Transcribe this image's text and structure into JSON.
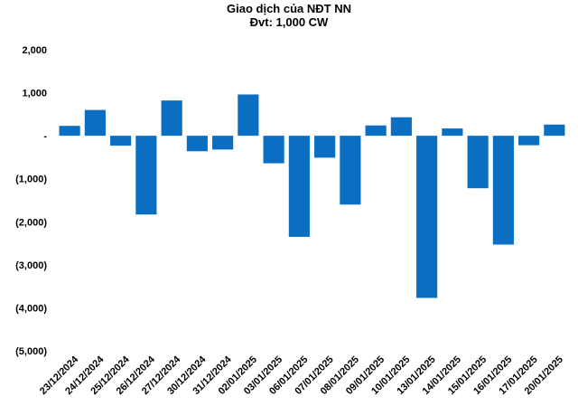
{
  "chart_data": {
    "type": "bar",
    "title": "Giao dịch của NĐT NN",
    "subtitle": "Đvt: 1,000 CW",
    "xlabel": "",
    "ylabel": "",
    "ylim": [
      -5000,
      2000
    ],
    "ytick_values": [
      2000,
      1000,
      0,
      -1000,
      -2000,
      -3000,
      -4000,
      -5000
    ],
    "ytick_labels": [
      "2,000",
      "1,000",
      "-",
      "(1,000)",
      "(2,000)",
      "(3,000)",
      "(4,000)",
      "(5,000)"
    ],
    "grid": false,
    "bar_color": "#0a6fc2",
    "categories": [
      "23/12/2024",
      "24/12/2024",
      "25/12/2024",
      "26/12/2024",
      "27/12/2024",
      "30/12/2024",
      "31/12/2024",
      "02/01/2025",
      "03/01/2025",
      "06/01/2025",
      "07/01/2025",
      "08/01/2025",
      "09/01/2025",
      "10/01/2025",
      "13/01/2025",
      "14/01/2025",
      "15/01/2025",
      "16/01/2025",
      "17/01/2025",
      "20/01/2025"
    ],
    "values": [
      230,
      600,
      -230,
      -1830,
      820,
      -360,
      -320,
      960,
      -640,
      -2350,
      -510,
      -1600,
      240,
      430,
      -3770,
      170,
      -1220,
      -2530,
      -220,
      260
    ]
  }
}
